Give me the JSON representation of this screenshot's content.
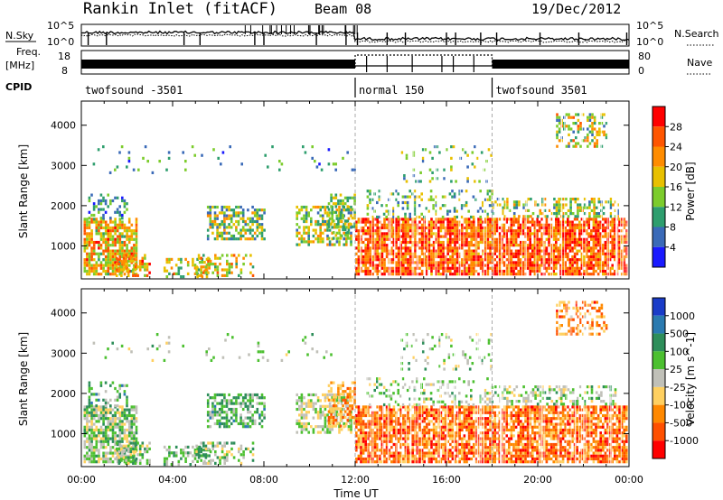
{
  "header": {
    "station": "Rankin Inlet (fitACF)",
    "beam": "Beam 08",
    "date": "19/Dec/2012"
  },
  "status_panels": {
    "nsky_label": "N.Sky",
    "nsky_ticks": [
      "10^5",
      "10^0"
    ],
    "nsearch_label": "N.Search",
    "nsearch_ticks": [
      "10^5",
      "10^0"
    ],
    "freq_label_1": "Freq.",
    "freq_label_2": "[MHz]",
    "freq_ticks": [
      "18",
      "8"
    ],
    "nave_label": "Nave",
    "nave_ticks": [
      "80",
      "0"
    ],
    "cpid_label": "CPID",
    "cpid_segments": [
      {
        "label": "twofsound -3501",
        "start_hour": 0
      },
      {
        "label": "normal 150",
        "start_hour": 12
      },
      {
        "label": "twofsound 3501",
        "start_hour": 18
      }
    ]
  },
  "chart_data": [
    {
      "type": "heatmap",
      "name": "power-panel",
      "ylabel": "Slant Range [km]",
      "xlabel": "",
      "xlim": [
        0,
        24
      ],
      "ylim": [
        180,
        4600
      ],
      "yticks": [
        1000,
        2000,
        3000,
        4000
      ],
      "colorbar": {
        "label": "Power [dB]",
        "ticks": [
          "28",
          "24",
          "20",
          "16",
          "12",
          "8",
          "4"
        ],
        "colors": [
          "#ff0000",
          "#ff5500",
          "#ff8c00",
          "#e8c000",
          "#7ccc2c",
          "#2e9e6e",
          "#3a6ab8",
          "#1a1aff"
        ]
      }
    },
    {
      "type": "heatmap",
      "name": "velocity-panel",
      "ylabel": "Slant Range [km]",
      "xlabel": "Time UT",
      "xlim": [
        0,
        24
      ],
      "ylim": [
        180,
        4600
      ],
      "yticks": [
        1000,
        2000,
        3000,
        4000
      ],
      "xticks": [
        "00:00",
        "04:00",
        "08:00",
        "12:00",
        "16:00",
        "20:00",
        "00:00"
      ],
      "colorbar": {
        "label": "Velocity [m s^-1]",
        "ticks": [
          "1000",
          "500",
          "100",
          "25",
          "-25",
          "-100",
          "-500",
          "-1000"
        ],
        "colors": [
          "#1a3cc8",
          "#2a7ab0",
          "#2e8e5a",
          "#4cc030",
          "#c0c0b8",
          "#ffd060",
          "#ff8800",
          "#ff5000",
          "#ff0000"
        ]
      }
    }
  ]
}
